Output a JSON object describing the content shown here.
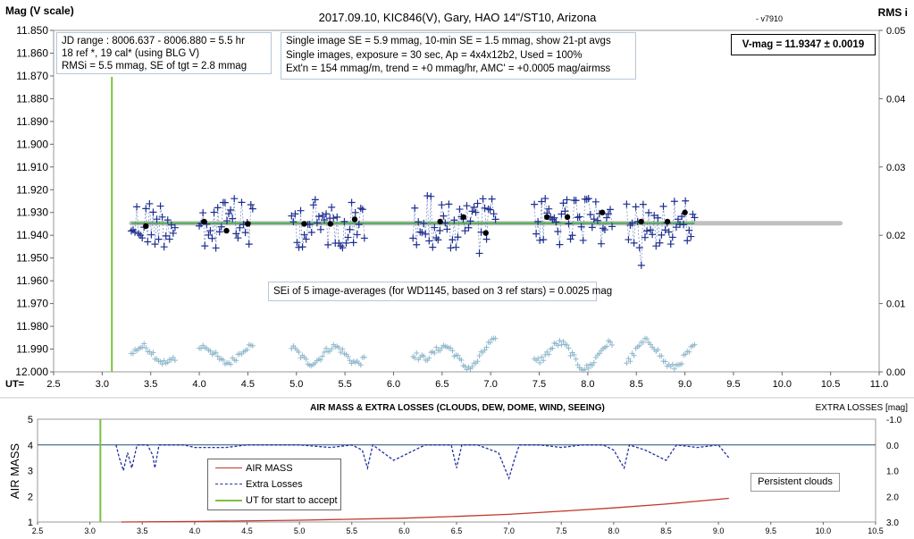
{
  "top": {
    "title": "2017.09.10,  KIC846(V),  Gary,  HAO 14\"/ST10, Arizona",
    "version": "- v7910",
    "y_left_label": "Mag (V scale)",
    "y_right_label": "RMS i",
    "x_axis_label": "UT=",
    "info_left": [
      "JD range : 8006.637 - 8006.880 =  5.5  hr",
      "18 ref *, 19 cal* (using BLG V)",
      "RMSi = 5.5 mmag, SE of tgt = 2.8 mmag"
    ],
    "info_mid": [
      "Single image SE = 5.9 mmag, 10-min SE = 1.5 mmag, show 21-pt avgs",
      "Single images, exposure = 30 sec, Ap = 4x4x12b2, Used = 100%",
      "Ext'n = 154 mmag/m, trend = +0 mmag/hr, AMC' = +0.0005 mag/airmss"
    ],
    "vmag": "V-mag = 11.9347 ± 0.0019",
    "sei_note": "SEi of 5 image-averages (for WD1145, based on 3 ref stars) = 0.0025 mag"
  },
  "bottom": {
    "title": "AIR MASS & EXTRA LOSSES (CLOUDS, DEW, DOME, WIND, SEEING)",
    "y_left_label": "AIR MASS",
    "y_right_label": "EXTRA LOSSES [mag]",
    "legend": [
      "AIR MASS",
      "Extra Losses",
      "UT for start to accept"
    ],
    "note": "Persistent clouds"
  },
  "colors": {
    "mag_points": "#1f2f8f",
    "avg_points": "#000000",
    "rms_points": "#8fb8cc",
    "fit_line": "#4caf50",
    "mean_line": "#c0c0c0",
    "start_line": "#7ac143",
    "airmass": "#c0392b",
    "losses": "#1f2f9f",
    "zero_line": "#1f4e79"
  },
  "chart_data": [
    {
      "type": "scatter",
      "title": "2017.09.10,  KIC846(V),  Gary,  HAO 14\"/ST10, Arizona",
      "xlabel": "UT=",
      "ylabel": "Mag (V scale)",
      "y2label": "RMS i",
      "xlim": [
        2.5,
        11.0
      ],
      "ylim": [
        12.0,
        11.85
      ],
      "y2lim": [
        0.0,
        0.05
      ],
      "xticks": [
        "2.5",
        "3.0",
        "3.5",
        "4.0",
        "4.5",
        "5.0",
        "5.5",
        "6.0",
        "6.5",
        "7.0",
        "7.5",
        "8.0",
        "8.5",
        "9.0",
        "9.5",
        "10.0",
        "10.5",
        "11.0"
      ],
      "yticks": [
        "11.850",
        "11.860",
        "11.870",
        "11.880",
        "11.890",
        "11.900",
        "11.910",
        "11.920",
        "11.930",
        "11.940",
        "11.950",
        "11.960",
        "11.970",
        "11.980",
        "11.990",
        "12.000"
      ],
      "y2ticks": [
        "0.05",
        "0.04",
        "0.03",
        "0.02",
        "0.01",
        "0.00"
      ],
      "start_accept_ut": 3.1,
      "mean_mag": 11.9347,
      "mean_line_x": [
        3.3,
        10.6
      ],
      "fit_line_x": [
        3.3,
        9.1
      ],
      "segments": [
        [
          3.3,
          3.75
        ],
        [
          4.0,
          4.55
        ],
        [
          4.95,
          5.7
        ],
        [
          6.2,
          7.05
        ],
        [
          7.45,
          8.25
        ],
        [
          8.4,
          9.1
        ]
      ],
      "series": [
        {
          "name": "",
          "kind": "avg",
          "x": [
            3.45,
            4.05,
            4.28,
            4.5,
            5.08,
            5.35,
            5.6,
            6.48,
            6.72,
            6.95,
            7.58,
            7.79,
            8.15,
            8.55,
            8.82,
            9.0
          ],
          "y": [
            11.936,
            11.934,
            11.938,
            11.935,
            11.935,
            11.935,
            11.933,
            11.934,
            11.932,
            11.939,
            11.932,
            11.932,
            11.93,
            11.934,
            11.934,
            11.93
          ]
        }
      ]
    },
    {
      "type": "line",
      "title": "AIR MASS & EXTRA LOSSES (CLOUDS, DEW, DOME, WIND, SEEING)",
      "ylabel": "AIR MASS",
      "y2label": "EXTRA LOSSES [mag]",
      "xlim": [
        2.5,
        10.5
      ],
      "ylim": [
        1,
        5
      ],
      "y2lim": [
        3.0,
        -1.0
      ],
      "xticks": [
        "2.5",
        "3.0",
        "3.5",
        "4.0",
        "4.5",
        "5.0",
        "5.5",
        "6.0",
        "6.5",
        "7.0",
        "7.5",
        "8.0",
        "8.5",
        "9.0",
        "9.5",
        "10.0",
        "10.5"
      ],
      "yticks": [
        "1",
        "2",
        "3",
        "4",
        "5"
      ],
      "y2ticks": [
        "-1.0",
        "0.0",
        "1.0",
        "2.0",
        "3.0"
      ],
      "series": [
        {
          "name": "AIR MASS",
          "x": [
            3.3,
            4.0,
            5.0,
            6.0,
            6.5,
            7.0,
            7.5,
            8.0,
            8.5,
            9.1
          ],
          "y": [
            1.0,
            1.02,
            1.07,
            1.15,
            1.22,
            1.3,
            1.42,
            1.55,
            1.7,
            1.92
          ]
        },
        {
          "name": "Extra Losses",
          "x": [
            3.25,
            3.28,
            3.32,
            3.36,
            3.4,
            3.45,
            3.55,
            3.6,
            3.62,
            3.66,
            3.7,
            3.9,
            4.0,
            4.3,
            4.5,
            5.0,
            5.3,
            5.5,
            5.6,
            5.65,
            5.7,
            5.9,
            6.2,
            6.45,
            6.5,
            6.55,
            6.7,
            6.9,
            6.95,
            7.0,
            7.05,
            7.1,
            7.3,
            7.5,
            7.7,
            7.9,
            8.0,
            8.1,
            8.15,
            8.3,
            8.5,
            8.6,
            8.8,
            9.0,
            9.1
          ],
          "y": [
            0.0,
            0.5,
            1.0,
            0.3,
            0.9,
            0.0,
            0.0,
            0.4,
            0.9,
            0.0,
            0.0,
            0.0,
            0.1,
            0.1,
            0.0,
            0.0,
            0.1,
            0.0,
            0.2,
            0.9,
            0.0,
            0.6,
            0.0,
            0.0,
            0.9,
            0.0,
            0.0,
            0.3,
            0.8,
            1.3,
            0.6,
            0.0,
            0.0,
            0.1,
            0.0,
            0.0,
            0.2,
            0.9,
            0.0,
            0.2,
            0.6,
            0.0,
            0.1,
            0.0,
            0.5
          ]
        },
        {
          "name": "UT for start to accept",
          "x": [
            3.1,
            3.1
          ],
          "y": [
            1,
            5
          ]
        }
      ]
    }
  ]
}
